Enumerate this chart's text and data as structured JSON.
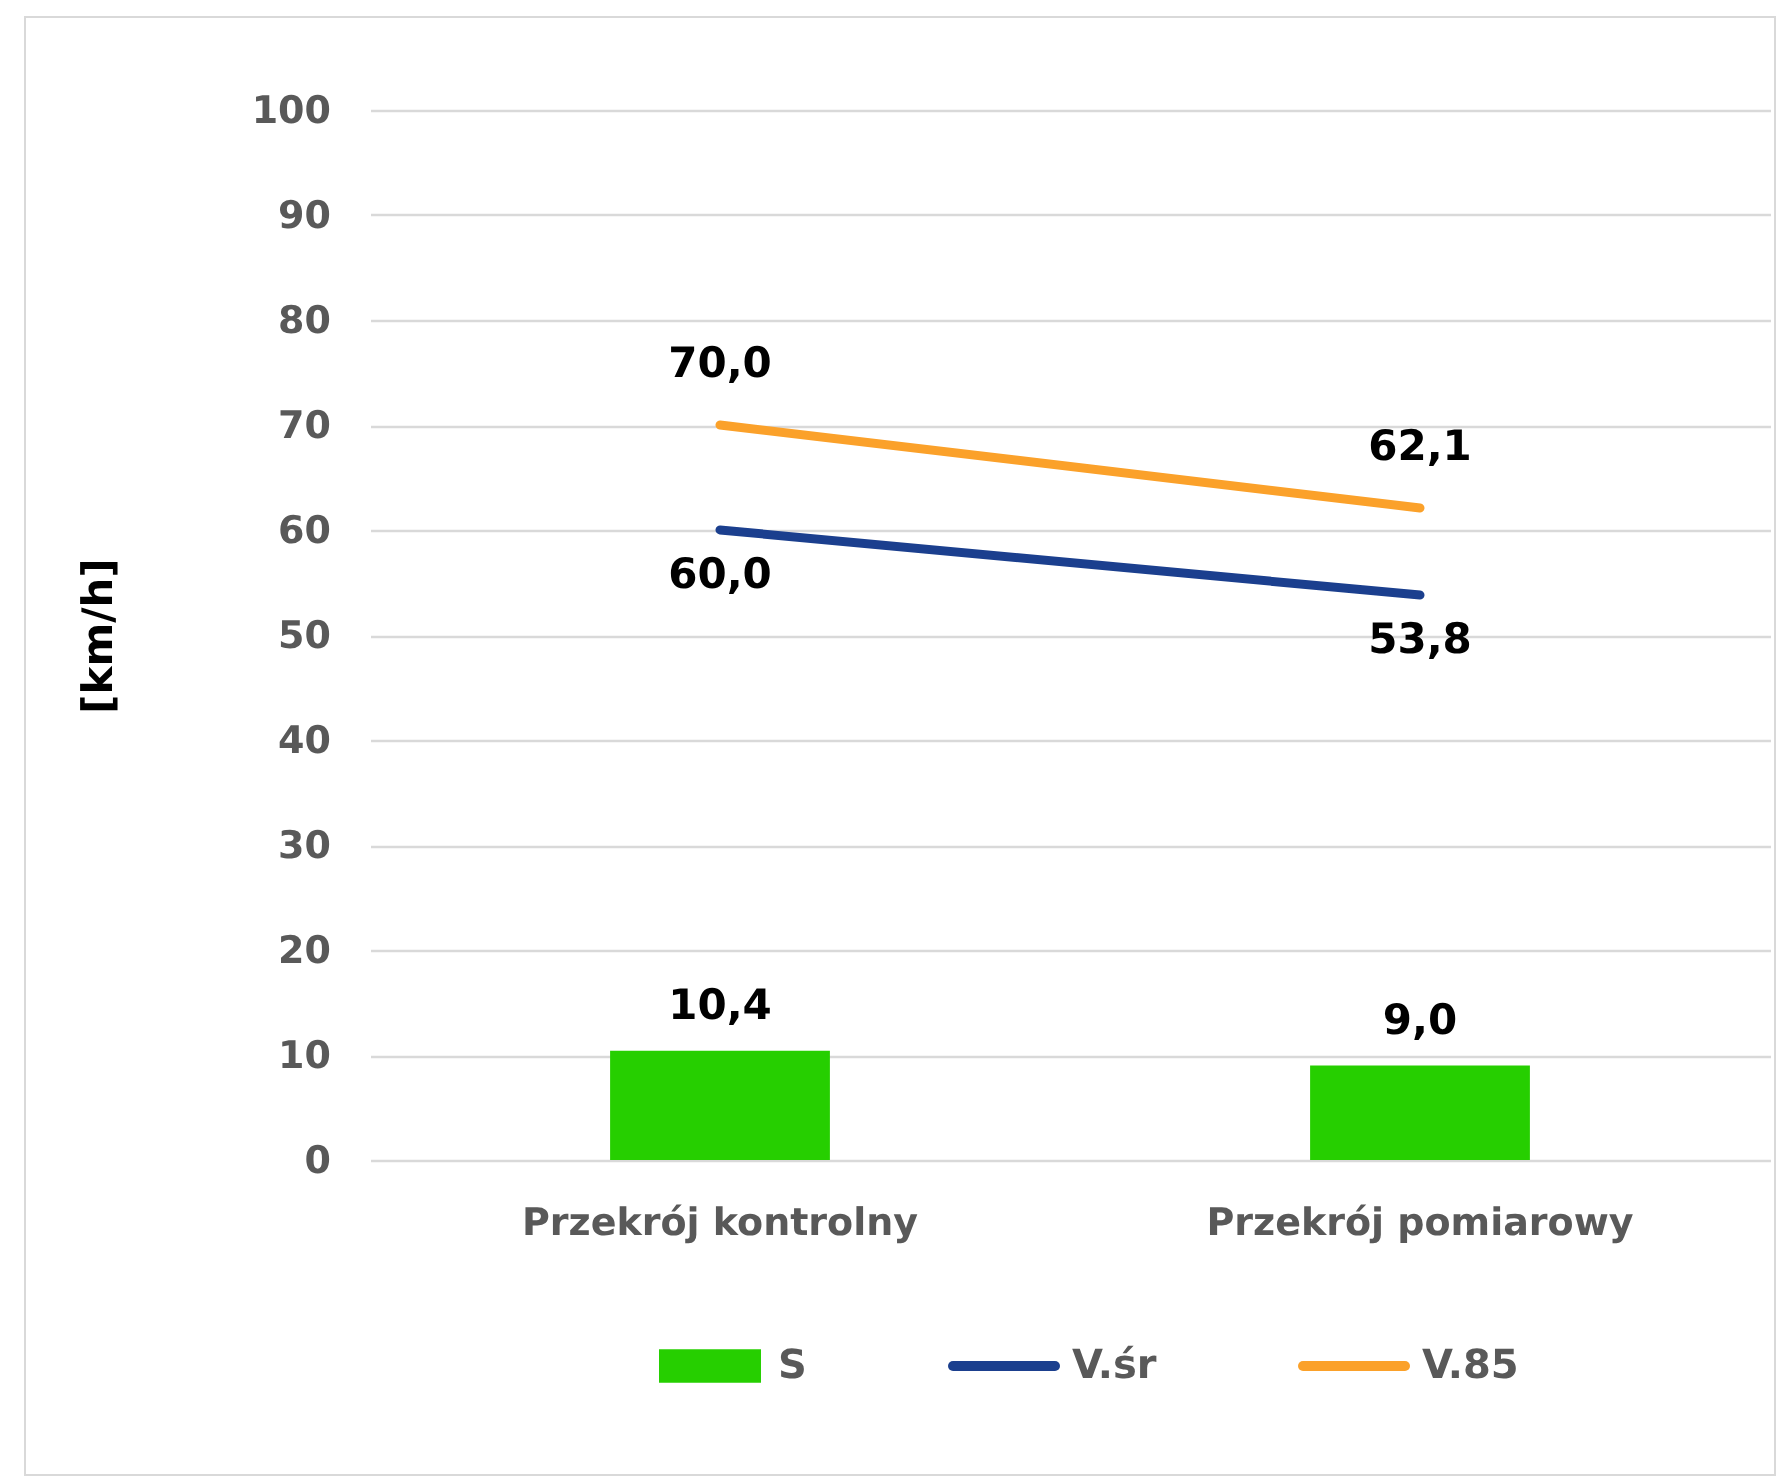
{
  "chart_data": {
    "type": "bar",
    "ylabel": "[km/h]",
    "categories": [
      "Przekrój kontrolny",
      "Przekrój pomiarowy"
    ],
    "series": [
      {
        "name": "S",
        "type": "bar",
        "color": "#26cf00",
        "values": [
          10.4,
          9.0
        ],
        "value_labels": [
          "10,4",
          "9,0"
        ]
      },
      {
        "name": "V.śr",
        "type": "line",
        "color": "#1b3f8e",
        "values": [
          60.0,
          53.8
        ],
        "value_labels": [
          "60,0",
          "53,8"
        ]
      },
      {
        "name": "V.85",
        "type": "line",
        "color": "#fba12a",
        "values": [
          70.0,
          62.1
        ],
        "value_labels": [
          "70,0",
          "62,1"
        ]
      }
    ],
    "ylim": [
      0,
      100
    ],
    "yticks": [
      0,
      10,
      20,
      30,
      40,
      50,
      60,
      70,
      80,
      90,
      100
    ],
    "grid": "y",
    "legend": "bottom"
  }
}
